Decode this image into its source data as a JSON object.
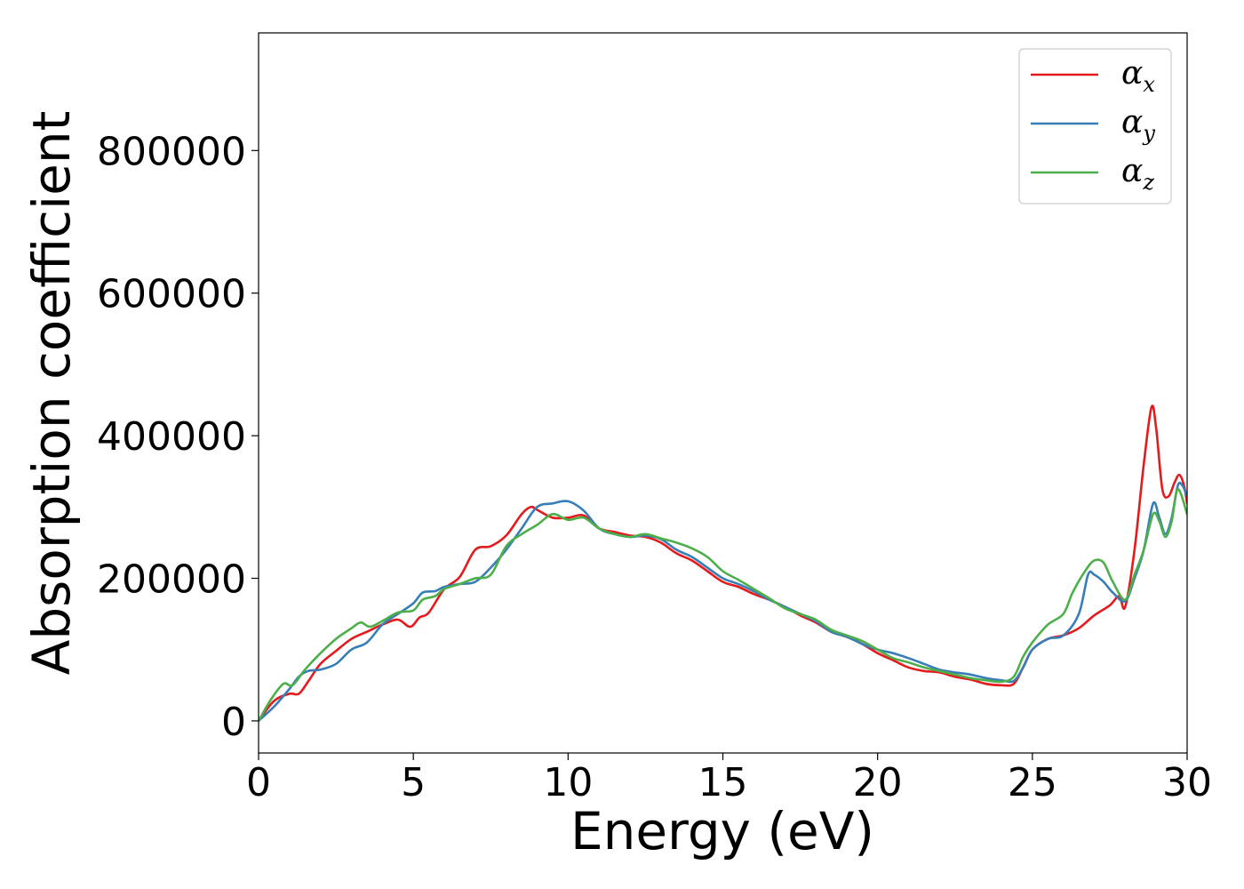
{
  "chart_data": {
    "type": "line",
    "title": "",
    "xlabel": "Energy (eV)",
    "ylabel": "Absorption coefficient",
    "xlim": [
      0,
      30
    ],
    "ylim": [
      -45000,
      965000
    ],
    "xticks": [
      0,
      5,
      10,
      15,
      20,
      25,
      30
    ],
    "xtick_labels": [
      "0",
      "5",
      "10",
      "15",
      "20",
      "25",
      "30"
    ],
    "yticks": [
      0,
      200000,
      400000,
      600000,
      800000
    ],
    "ytick_labels": [
      "0",
      "200000",
      "400000",
      "600000",
      "800000"
    ],
    "grid": false,
    "legend_position": "top-right",
    "series": [
      {
        "name": "α_x",
        "symbol": "α",
        "subscript": "x",
        "color": "#e41a1c",
        "x": [
          0,
          0.5,
          1.0,
          1.3,
          1.6,
          2.0,
          2.5,
          3.0,
          3.5,
          4.0,
          4.5,
          4.9,
          5.2,
          5.5,
          6.0,
          6.5,
          7.0,
          7.5,
          8.0,
          8.5,
          8.8,
          9.0,
          9.5,
          10.0,
          10.5,
          11.0,
          11.5,
          12.0,
          12.5,
          13.0,
          13.5,
          14.0,
          14.5,
          15.0,
          15.5,
          16.0,
          16.5,
          17.0,
          17.5,
          18.0,
          18.5,
          19.0,
          19.5,
          20.0,
          20.5,
          21.0,
          21.5,
          22.0,
          22.5,
          23.0,
          23.5,
          24.0,
          24.4,
          24.7,
          25.0,
          25.5,
          26.0,
          26.5,
          27.0,
          27.5,
          27.8,
          28.0,
          28.3,
          28.6,
          28.85,
          29.0,
          29.2,
          29.4,
          29.6,
          29.75,
          29.9,
          30.0
        ],
        "values": [
          0,
          28000,
          38000,
          38000,
          55000,
          80000,
          98000,
          115000,
          125000,
          135000,
          142000,
          132000,
          145000,
          152000,
          185000,
          202000,
          240000,
          245000,
          260000,
          290000,
          300000,
          296000,
          285000,
          285000,
          288000,
          270000,
          265000,
          260000,
          258000,
          250000,
          235000,
          225000,
          210000,
          195000,
          188000,
          178000,
          170000,
          160000,
          148000,
          138000,
          125000,
          118000,
          108000,
          95000,
          85000,
          75000,
          70000,
          68000,
          62000,
          58000,
          52000,
          50000,
          52000,
          75000,
          100000,
          115000,
          120000,
          130000,
          148000,
          162000,
          175000,
          160000,
          240000,
          360000,
          440000,
          410000,
          325000,
          315000,
          335000,
          345000,
          330000,
          305000
        ]
      },
      {
        "name": "α_y",
        "symbol": "α",
        "subscript": "y",
        "color": "#377eb8",
        "x": [
          0,
          0.5,
          1.0,
          1.3,
          1.6,
          2.0,
          2.5,
          3.0,
          3.5,
          4.0,
          4.5,
          5.0,
          5.3,
          5.7,
          6.0,
          6.5,
          7.0,
          7.5,
          8.0,
          8.5,
          9.0,
          9.5,
          10.0,
          10.5,
          11.0,
          11.5,
          12.0,
          12.5,
          13.0,
          13.5,
          14.0,
          14.5,
          15.0,
          15.5,
          16.0,
          16.5,
          17.0,
          17.5,
          18.0,
          18.5,
          19.0,
          19.5,
          20.0,
          20.5,
          21.0,
          21.5,
          22.0,
          22.5,
          23.0,
          23.5,
          24.0,
          24.4,
          24.7,
          25.0,
          25.5,
          26.0,
          26.5,
          26.8,
          27.0,
          27.3,
          27.6,
          28.0,
          28.3,
          28.6,
          28.9,
          29.1,
          29.3,
          29.5,
          29.7,
          29.85,
          30.0
        ],
        "values": [
          0,
          20000,
          45000,
          62000,
          70000,
          72000,
          80000,
          100000,
          110000,
          135000,
          150000,
          165000,
          180000,
          182000,
          188000,
          192000,
          195000,
          215000,
          240000,
          270000,
          300000,
          305000,
          308000,
          295000,
          270000,
          262000,
          258000,
          260000,
          255000,
          240000,
          230000,
          215000,
          200000,
          192000,
          182000,
          170000,
          160000,
          150000,
          140000,
          125000,
          118000,
          108000,
          100000,
          95000,
          88000,
          80000,
          72000,
          68000,
          65000,
          60000,
          57000,
          56000,
          75000,
          100000,
          115000,
          120000,
          150000,
          205000,
          205000,
          195000,
          180000,
          168000,
          200000,
          240000,
          305000,
          285000,
          262000,
          285000,
          330000,
          330000,
          315000
        ]
      },
      {
        "name": "α_z",
        "symbol": "α",
        "subscript": "z",
        "color": "#4daf4a",
        "x": [
          0,
          0.4,
          0.8,
          1.1,
          1.5,
          2.0,
          2.5,
          3.0,
          3.3,
          3.6,
          4.0,
          4.5,
          5.0,
          5.3,
          5.7,
          6.0,
          6.5,
          7.0,
          7.5,
          8.0,
          8.5,
          9.0,
          9.5,
          10.0,
          10.5,
          11.0,
          11.5,
          12.0,
          12.5,
          13.0,
          13.5,
          14.0,
          14.5,
          15.0,
          15.5,
          16.0,
          16.5,
          17.0,
          17.5,
          18.0,
          18.5,
          19.0,
          19.5,
          20.0,
          20.5,
          21.0,
          21.5,
          22.0,
          22.5,
          23.0,
          23.5,
          24.0,
          24.4,
          24.7,
          25.0,
          25.5,
          26.0,
          26.3,
          26.7,
          27.0,
          27.3,
          27.6,
          28.0,
          28.3,
          28.6,
          28.9,
          29.1,
          29.3,
          29.5,
          29.7,
          30.0
        ],
        "values": [
          0,
          30000,
          52000,
          50000,
          72000,
          95000,
          115000,
          130000,
          138000,
          132000,
          140000,
          152000,
          155000,
          170000,
          175000,
          185000,
          192000,
          200000,
          205000,
          245000,
          262000,
          275000,
          290000,
          282000,
          285000,
          270000,
          262000,
          258000,
          262000,
          256000,
          250000,
          242000,
          230000,
          210000,
          198000,
          185000,
          172000,
          158000,
          150000,
          142000,
          128000,
          120000,
          112000,
          100000,
          88000,
          82000,
          75000,
          70000,
          65000,
          60000,
          57000,
          55000,
          62000,
          90000,
          110000,
          135000,
          150000,
          180000,
          210000,
          225000,
          222000,
          195000,
          170000,
          205000,
          240000,
          290000,
          280000,
          258000,
          280000,
          325000,
          290000
        ]
      }
    ]
  }
}
